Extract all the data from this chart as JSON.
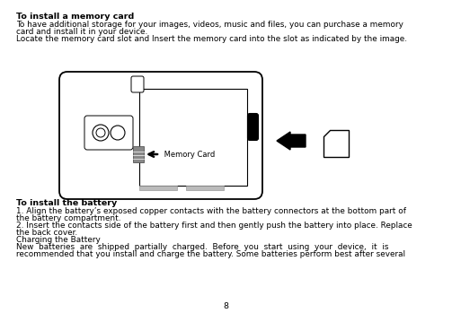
{
  "bg_color": "#ffffff",
  "title1": "To install a memory card",
  "para1_line1": "To have additional storage for your images, videos, music and files, you can purchase a memory",
  "para1_line2": "card and install it in your device.",
  "para1_line3": "Locate the memory card slot and Insert the memory card into the slot as indicated by the image.",
  "title2": "To install the battery",
  "para2_line1": "1. Align the battery’s exposed copper contacts with the battery connectors at the bottom part of",
  "para2_line2": "the battery compartment.",
  "para2_line3": "2. Insert the contacts side of the battery first and then gently push the battery into place. Replace",
  "para2_line4": "the back cover.",
  "para2_line5": "Charging the Battery",
  "para2_line6": "New  batteries  are  shipped  partially  charged.  Before  you  start  using  your  device,  it  is",
  "para2_line7": "recommended that you install and charge the battery. Some batteries perform best after several",
  "page_number": "8",
  "memory_card_label": " Memory Card"
}
